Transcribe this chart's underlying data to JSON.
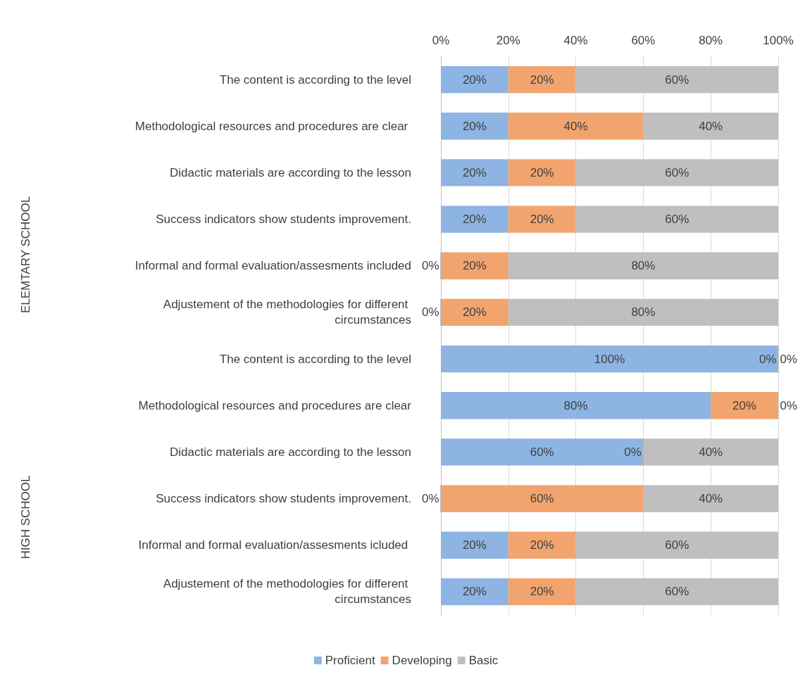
{
  "chart_data": {
    "type": "bar",
    "orientation": "horizontal",
    "stacked": true,
    "categories": [
      "The content is according to the level",
      "Methodological resources and procedures are clear ",
      "Didactic materials are according to the lesson",
      "Success indicators show students improvement.",
      "Informal and formal evaluation/assesments included",
      "Adjustement of the methodologies for different circumstances",
      "The content is according to the level",
      "Methodological resources and procedures are clear",
      "Didactic materials are according to the lesson",
      "Success indicators show students improvement.",
      "Informal and formal evaluation/assesments icluded ",
      "Adjustement of the methodologies for different circumstances"
    ],
    "series": [
      {
        "name": "Proficient",
        "color": "#8db4e2",
        "values": [
          20,
          20,
          20,
          20,
          0,
          0,
          100,
          80,
          60,
          0,
          20,
          20
        ],
        "value_labels": [
          "20%",
          "20%",
          "20%",
          "20%",
          "0%",
          "0%",
          "100%",
          "80%",
          "60%",
          "0%",
          "20%",
          "20%"
        ]
      },
      {
        "name": "Developing",
        "color": "#f2a46e",
        "values": [
          20,
          40,
          20,
          20,
          20,
          20,
          0,
          20,
          0,
          60,
          20,
          20
        ],
        "value_labels": [
          "20%",
          "40%",
          "20%",
          "20%",
          "20%",
          "20%",
          "0%",
          "20%",
          "0%",
          "60%",
          "20%",
          "20%"
        ]
      },
      {
        "name": "Basic",
        "color": "#bfbfbf",
        "values": [
          60,
          40,
          60,
          60,
          80,
          80,
          0,
          0,
          40,
          40,
          60,
          60
        ],
        "value_labels": [
          "60%",
          "40%",
          "60%",
          "60%",
          "80%",
          "80%",
          "0%",
          "0%",
          "40%",
          "40%",
          "60%",
          "60%"
        ]
      }
    ],
    "xlim": [
      0,
      100
    ],
    "xticks": [
      {
        "value": 0,
        "label": "0%"
      },
      {
        "value": 20,
        "label": "20%"
      },
      {
        "value": 40,
        "label": "40%"
      },
      {
        "value": 60,
        "label": "60%"
      },
      {
        "value": 80,
        "label": "80%"
      },
      {
        "value": 100,
        "label": "100%"
      }
    ],
    "annotations": [
      "ELEMTARY SCHOOL",
      "HIGH SCHOOL"
    ],
    "grid": "x",
    "legend": "bottom"
  }
}
